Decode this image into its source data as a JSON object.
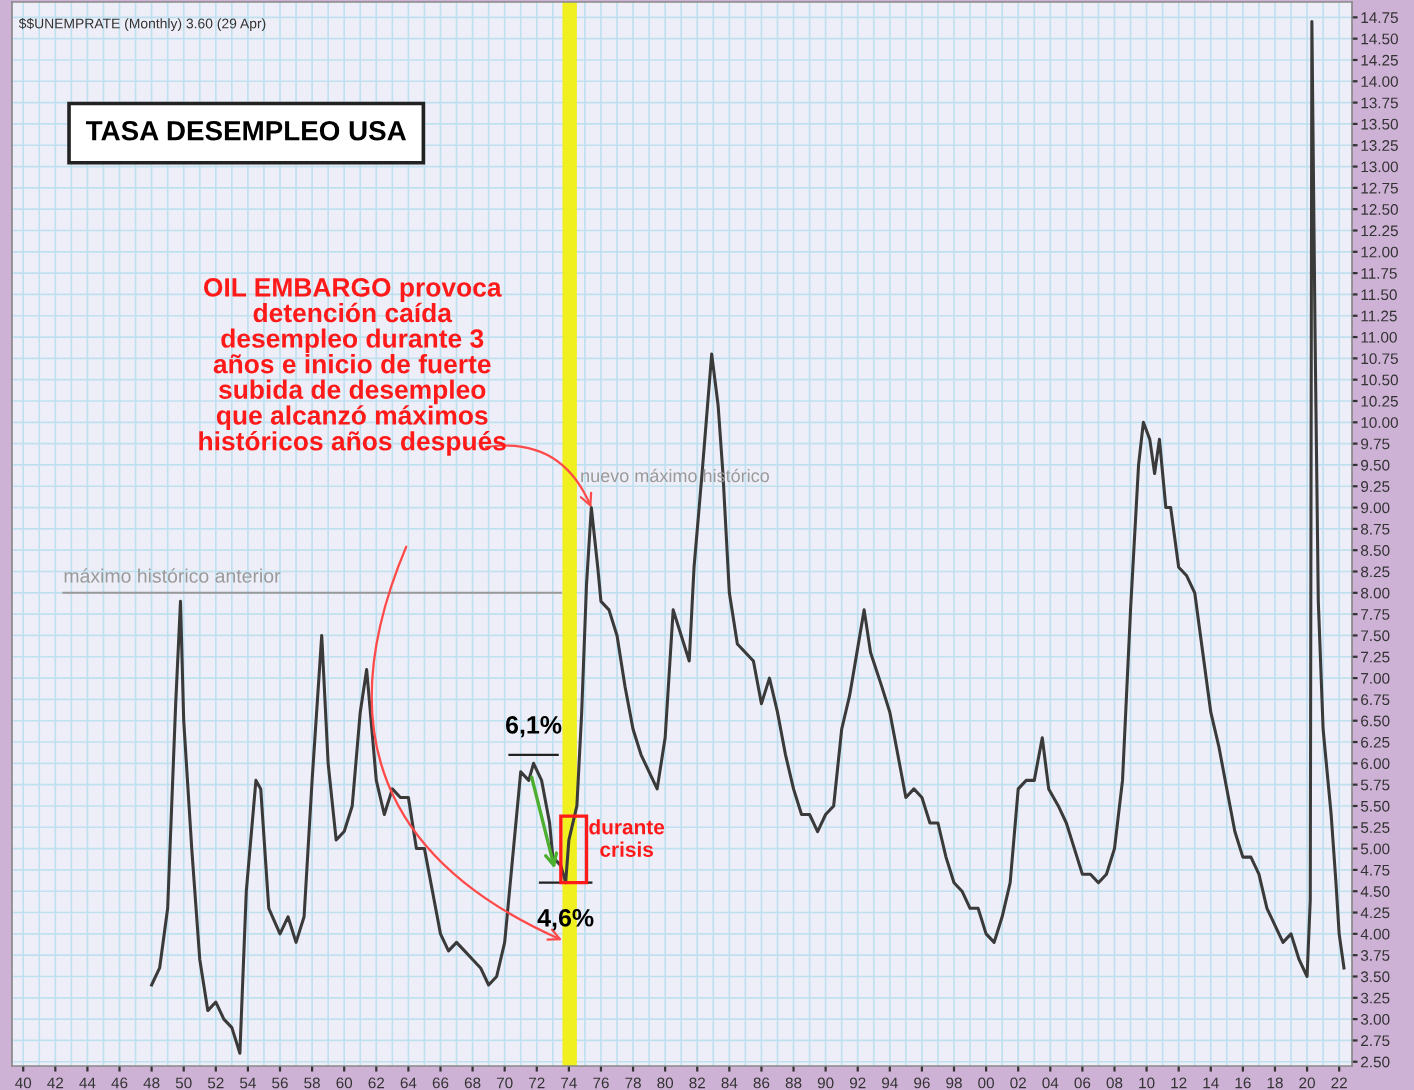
{
  "chart_data": {
    "type": "line",
    "title": "TASA DESEMPLEO USA",
    "subtitle": "$$UNEMPRATE (Monthly) 3.60 (29 Apr)",
    "x": [
      1948.0,
      1948.5,
      1949.0,
      1949.5,
      1949.8,
      1950.0,
      1950.5,
      1951.0,
      1951.5,
      1952.0,
      1952.5,
      1953.0,
      1953.5,
      1953.9,
      1954.5,
      1954.8,
      1955.3,
      1956.0,
      1956.5,
      1957.0,
      1957.5,
      1958.0,
      1958.6,
      1959.0,
      1959.5,
      1960.0,
      1960.5,
      1961.0,
      1961.4,
      1962.0,
      1962.5,
      1963.0,
      1963.5,
      1964.0,
      1964.5,
      1965.0,
      1965.5,
      1966.0,
      1966.5,
      1967.0,
      1967.5,
      1968.0,
      1968.5,
      1969.0,
      1969.5,
      1970.0,
      1970.5,
      1971.0,
      1971.5,
      1971.8,
      1972.3,
      1972.8,
      1973.0,
      1973.5,
      1973.8,
      1974.0,
      1974.5,
      1974.8,
      1975.1,
      1975.4,
      1975.8,
      1976.0,
      1976.5,
      1977.0,
      1977.5,
      1978.0,
      1978.5,
      1979.0,
      1979.5,
      1980.0,
      1980.5,
      1981.0,
      1981.5,
      1981.8,
      1982.3,
      1982.9,
      1983.3,
      1983.6,
      1984.0,
      1984.5,
      1985.0,
      1985.5,
      1986.0,
      1986.5,
      1987.0,
      1987.5,
      1988.0,
      1988.5,
      1989.0,
      1989.5,
      1990.0,
      1990.5,
      1991.0,
      1991.5,
      1992.4,
      1992.8,
      1993.5,
      1994.0,
      1994.5,
      1995.0,
      1995.5,
      1996.0,
      1996.5,
      1997.0,
      1997.5,
      1998.0,
      1998.5,
      1999.0,
      1999.5,
      2000.0,
      2000.5,
      2001.0,
      2001.5,
      2002.0,
      2002.5,
      2003.0,
      2003.5,
      2003.9,
      2004.5,
      2005.0,
      2005.5,
      2006.0,
      2006.5,
      2007.0,
      2007.5,
      2008.0,
      2008.5,
      2009.0,
      2009.5,
      2009.8,
      2010.2,
      2010.5,
      2010.8,
      2011.2,
      2011.5,
      2012.0,
      2012.5,
      2013.0,
      2013.5,
      2014.0,
      2014.5,
      2015.0,
      2015.5,
      2016.0,
      2016.5,
      2017.0,
      2017.5,
      2018.0,
      2018.5,
      2019.0,
      2019.5,
      2020.0,
      2020.2,
      2020.3,
      2020.5,
      2020.7,
      2021.0,
      2021.5,
      2021.8,
      2022.0,
      2022.3
    ],
    "series": [
      {
        "color": "#3a3a3a",
        "values": [
          3.4,
          3.6,
          4.3,
          6.7,
          7.9,
          6.5,
          5.0,
          3.7,
          3.1,
          3.2,
          3.0,
          2.9,
          2.6,
          4.5,
          5.8,
          5.7,
          4.3,
          4.0,
          4.2,
          3.9,
          4.2,
          5.8,
          7.5,
          6.0,
          5.1,
          5.2,
          5.5,
          6.6,
          7.1,
          5.8,
          5.4,
          5.7,
          5.6,
          5.6,
          5.0,
          5.0,
          4.5,
          4.0,
          3.8,
          3.9,
          3.8,
          3.7,
          3.6,
          3.4,
          3.5,
          3.9,
          4.9,
          5.9,
          5.8,
          6.0,
          5.8,
          5.3,
          4.9,
          4.8,
          4.6,
          5.1,
          5.5,
          6.6,
          8.1,
          9.0,
          8.3,
          7.9,
          7.8,
          7.5,
          6.9,
          6.4,
          6.1,
          5.9,
          5.7,
          6.3,
          7.8,
          7.5,
          7.2,
          8.3,
          9.4,
          10.8,
          10.2,
          9.4,
          8.0,
          7.4,
          7.3,
          7.2,
          6.7,
          7.0,
          6.6,
          6.1,
          5.7,
          5.4,
          5.4,
          5.2,
          5.4,
          5.5,
          6.4,
          6.8,
          7.8,
          7.3,
          6.9,
          6.6,
          6.1,
          5.6,
          5.7,
          5.6,
          5.3,
          5.3,
          4.9,
          4.6,
          4.5,
          4.3,
          4.3,
          4.0,
          3.9,
          4.2,
          4.6,
          5.7,
          5.8,
          5.8,
          6.3,
          5.7,
          5.5,
          5.3,
          5.0,
          4.7,
          4.7,
          4.6,
          4.7,
          5.0,
          5.8,
          7.8,
          9.5,
          10.0,
          9.8,
          9.4,
          9.8,
          9.0,
          9.0,
          8.3,
          8.2,
          8.0,
          7.3,
          6.6,
          6.2,
          5.7,
          5.2,
          4.9,
          4.9,
          4.7,
          4.3,
          4.1,
          3.9,
          4.0,
          3.7,
          3.5,
          4.4,
          14.7,
          11.0,
          7.9,
          6.4,
          5.4,
          4.6,
          4.0,
          3.6
        ]
      }
    ],
    "xlim": [
      1939.3,
      2022.8
    ],
    "ylim": [
      2.45,
      14.93
    ],
    "xticks": [
      {
        "value": 1940,
        "label": "40"
      },
      {
        "value": 1942,
        "label": "42"
      },
      {
        "value": 1944,
        "label": "44"
      },
      {
        "value": 1946,
        "label": "46"
      },
      {
        "value": 1948,
        "label": "48"
      },
      {
        "value": 1950,
        "label": "50"
      },
      {
        "value": 1952,
        "label": "52"
      },
      {
        "value": 1954,
        "label": "54"
      },
      {
        "value": 1956,
        "label": "56"
      },
      {
        "value": 1958,
        "label": "58"
      },
      {
        "value": 1960,
        "label": "60"
      },
      {
        "value": 1962,
        "label": "62"
      },
      {
        "value": 1964,
        "label": "64"
      },
      {
        "value": 1966,
        "label": "66"
      },
      {
        "value": 1968,
        "label": "68"
      },
      {
        "value": 1970,
        "label": "70"
      },
      {
        "value": 1972,
        "label": "72"
      },
      {
        "value": 1974,
        "label": "74"
      },
      {
        "value": 1976,
        "label": "76"
      },
      {
        "value": 1978,
        "label": "78"
      },
      {
        "value": 1980,
        "label": "80"
      },
      {
        "value": 1982,
        "label": "82"
      },
      {
        "value": 1984,
        "label": "84"
      },
      {
        "value": 1986,
        "label": "86"
      },
      {
        "value": 1988,
        "label": "88"
      },
      {
        "value": 1990,
        "label": "90"
      },
      {
        "value": 1992,
        "label": "92"
      },
      {
        "value": 1994,
        "label": "94"
      },
      {
        "value": 1996,
        "label": "96"
      },
      {
        "value": 1998,
        "label": "98"
      },
      {
        "value": 2000,
        "label": "00"
      },
      {
        "value": 2002,
        "label": "02"
      },
      {
        "value": 2004,
        "label": "04"
      },
      {
        "value": 2006,
        "label": "06"
      },
      {
        "value": 2008,
        "label": "08"
      },
      {
        "value": 2010,
        "label": "10"
      },
      {
        "value": 2012,
        "label": "12"
      },
      {
        "value": 2014,
        "label": "14"
      },
      {
        "value": 2016,
        "label": "16"
      },
      {
        "value": 2018,
        "label": "18"
      },
      {
        "value": 2020,
        "label": "20"
      },
      {
        "value": 2022,
        "label": "22"
      }
    ],
    "yticks": [
      {
        "value": 2.5,
        "label": "2.50"
      },
      {
        "value": 2.75,
        "label": "2.75"
      },
      {
        "value": 3.0,
        "label": "3.00"
      },
      {
        "value": 3.25,
        "label": "3.25"
      },
      {
        "value": 3.5,
        "label": "3.50"
      },
      {
        "value": 3.75,
        "label": "3.75"
      },
      {
        "value": 4.0,
        "label": "4.00"
      },
      {
        "value": 4.25,
        "label": "4.25"
      },
      {
        "value": 4.5,
        "label": "4.50"
      },
      {
        "value": 4.75,
        "label": "4.75"
      },
      {
        "value": 5.0,
        "label": "5.00"
      },
      {
        "value": 5.25,
        "label": "5.25"
      },
      {
        "value": 5.5,
        "label": "5.50"
      },
      {
        "value": 5.75,
        "label": "5.75"
      },
      {
        "value": 6.0,
        "label": "6.00"
      },
      {
        "value": 6.25,
        "label": "6.25"
      },
      {
        "value": 6.5,
        "label": "6.50"
      },
      {
        "value": 6.75,
        "label": "6.75"
      },
      {
        "value": 7.0,
        "label": "7.00"
      },
      {
        "value": 7.25,
        "label": "7.25"
      },
      {
        "value": 7.5,
        "label": "7.50"
      },
      {
        "value": 7.75,
        "label": "7.75"
      },
      {
        "value": 8.0,
        "label": "8.00"
      },
      {
        "value": 8.25,
        "label": "8.25"
      },
      {
        "value": 8.5,
        "label": "8.50"
      },
      {
        "value": 8.75,
        "label": "8.75"
      },
      {
        "value": 9.0,
        "label": "9.00"
      },
      {
        "value": 9.25,
        "label": "9.25"
      },
      {
        "value": 9.5,
        "label": "9.50"
      },
      {
        "value": 9.75,
        "label": "9.75"
      },
      {
        "value": 10.0,
        "label": "10.00"
      },
      {
        "value": 10.25,
        "label": "10.25"
      },
      {
        "value": 10.5,
        "label": "10.50"
      },
      {
        "value": 10.75,
        "label": "10.75"
      },
      {
        "value": 11.0,
        "label": "11.00"
      },
      {
        "value": 11.25,
        "label": "11.25"
      },
      {
        "value": 11.5,
        "label": "11.50"
      },
      {
        "value": 11.75,
        "label": "11.75"
      },
      {
        "value": 12.0,
        "label": "12.00"
      },
      {
        "value": 12.25,
        "label": "12.25"
      },
      {
        "value": 12.5,
        "label": "12.50"
      },
      {
        "value": 12.75,
        "label": "12.75"
      },
      {
        "value": 13.0,
        "label": "13.00"
      },
      {
        "value": 13.25,
        "label": "13.25"
      },
      {
        "value": 13.5,
        "label": "13.50"
      },
      {
        "value": 13.75,
        "label": "13.75"
      },
      {
        "value": 14.0,
        "label": "14.00"
      },
      {
        "value": 14.25,
        "label": "14.25"
      },
      {
        "value": 14.5,
        "label": "14.50"
      },
      {
        "value": 14.75,
        "label": "14.75"
      }
    ],
    "grid": true,
    "legend": false,
    "marker": "none",
    "line_style": "solid",
    "ref_lines": [
      {
        "axis": "y",
        "value": 8.0,
        "label": "máximo histórico anterior",
        "color": "#999999"
      }
    ],
    "bands": [
      {
        "axis": "x",
        "from": 1973.6,
        "to": 1974.5,
        "color": "#f0f020"
      }
    ],
    "annotations": [
      {
        "text": "OIL EMBARGO provoca\ndetención caída\ndesempleo durante 3\naños e inicio de fuerte\nsubida de desempleo\nque alcanzó máximos\nhistóricos años después",
        "x": 1975.4,
        "y": 9.0
      },
      {
        "text": "nuevo máximo histórico",
        "x": 1975.4,
        "y": 9.0
      },
      {
        "text": "6,1%",
        "x": 1971.8,
        "y": 6.1
      },
      {
        "text": "4,6%",
        "x": 1973.8,
        "y": 4.6
      },
      "durante\ncrisis"
    ]
  }
}
